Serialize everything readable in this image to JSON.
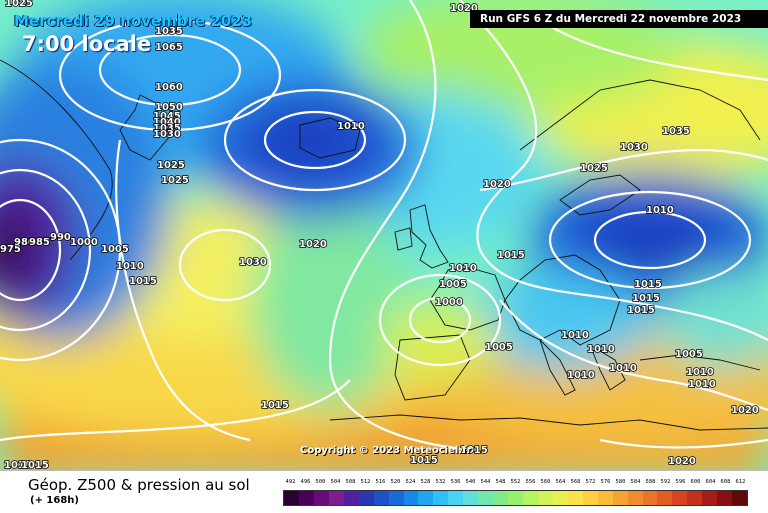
{
  "map": {
    "date_text": "Mercredi 29 novembre 2023",
    "time_text": "7:00 locale",
    "run_text": "Run GFS 6 Z du Mercredi 22 novembre 2023",
    "copyright": "Copyright © 2023 Meteociel.fr",
    "isobar_labels": [
      {
        "text": "1025"
      },
      {
        "text": "1035"
      },
      {
        "text": "1065"
      },
      {
        "text": "1060"
      },
      {
        "text": "1050"
      },
      {
        "text": "1045"
      },
      {
        "text": "1040"
      },
      {
        "text": "1035"
      },
      {
        "text": "1030"
      },
      {
        "text": "1025"
      },
      {
        "text": "1025"
      },
      {
        "text": "1020"
      },
      {
        "text": "1010"
      },
      {
        "text": "1020"
      },
      {
        "text": "1025"
      },
      {
        "text": "1035"
      },
      {
        "text": "1030"
      },
      {
        "text": "1010"
      },
      {
        "text": "975"
      },
      {
        "text": "980"
      },
      {
        "text": "985"
      },
      {
        "text": "990"
      },
      {
        "text": "1000"
      },
      {
        "text": "1005"
      },
      {
        "text": "1010"
      },
      {
        "text": "1015"
      },
      {
        "text": "1030"
      },
      {
        "text": "1020"
      },
      {
        "text": "1015"
      },
      {
        "text": "1010"
      },
      {
        "text": "1005"
      },
      {
        "text": "1000"
      },
      {
        "text": "1015"
      },
      {
        "text": "1015"
      },
      {
        "text": "1015"
      },
      {
        "text": "1010"
      },
      {
        "text": "1005"
      },
      {
        "text": "1010"
      },
      {
        "text": "1010"
      },
      {
        "text": "1010"
      },
      {
        "text": "1005"
      },
      {
        "text": "1010"
      },
      {
        "text": "1010"
      },
      {
        "text": "1015"
      },
      {
        "text": "1020"
      },
      {
        "text": "1015"
      },
      {
        "text": "1015"
      },
      {
        "text": "1020"
      },
      {
        "text": "1010"
      },
      {
        "text": "1015"
      }
    ]
  },
  "legend": {
    "title": "Géop. Z500 & pression au sol",
    "subtitle": "(+ 168h)",
    "scale_values": [
      "492",
      "496",
      "500",
      "504",
      "508",
      "512",
      "516",
      "520",
      "524",
      "528",
      "532",
      "536",
      "540",
      "544",
      "548",
      "552",
      "556",
      "560",
      "564",
      "568",
      "572",
      "576",
      "580",
      "584",
      "588",
      "592",
      "596",
      "600",
      "604",
      "608",
      "612"
    ],
    "scale_colors": [
      "#2a0030",
      "#4a0058",
      "#6a0a7a",
      "#7a1e90",
      "#5020a0",
      "#2838b0",
      "#1e50c8",
      "#1a6ad8",
      "#1a88e8",
      "#20a6f0",
      "#30c0f4",
      "#48d4f0",
      "#60e0d8",
      "#70e8b0",
      "#80ec88",
      "#98f070",
      "#b4f460",
      "#d0f458",
      "#e8f050",
      "#f8e448",
      "#fcd040",
      "#f8bc38",
      "#f4a430",
      "#f08c2c",
      "#ec7428",
      "#e45c24",
      "#d84420",
      "#c4301c",
      "#a81c18",
      "#881010",
      "#600808"
    ]
  }
}
